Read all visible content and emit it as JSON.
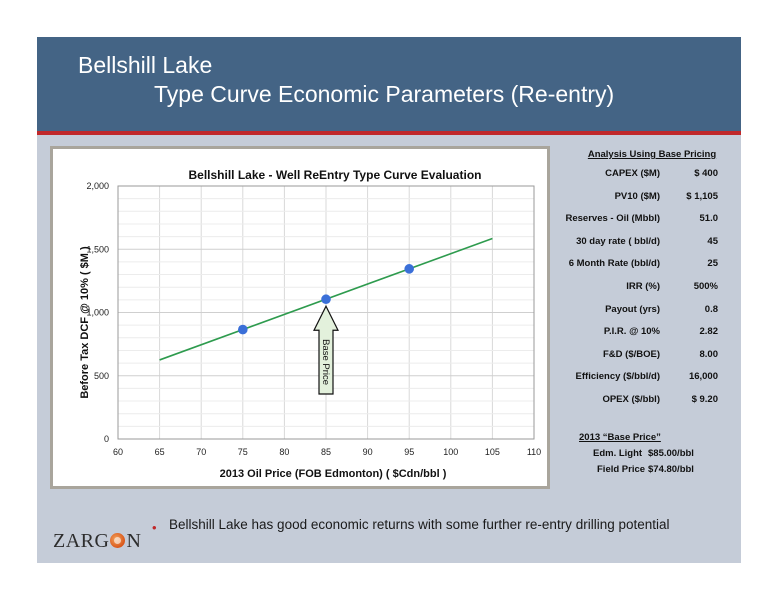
{
  "header": {
    "title_line1": "Bellshill Lake",
    "title_line2": "Type Curve Economic Parameters (Re-entry)"
  },
  "chart_data": {
    "type": "line",
    "title": "Bellshill Lake - Well ReEntry Type Curve Evaluation",
    "xlabel": "2013 Oil Price  (FOB Edmonton) ( $Cdn/bbl )",
    "ylabel": "Before Tax DCF @ 10% ( $M )",
    "xlim": [
      60,
      110
    ],
    "ylim": [
      0,
      2000
    ],
    "xticks": [
      60,
      65,
      70,
      75,
      80,
      85,
      90,
      95,
      100,
      105,
      110
    ],
    "yticks": [
      0,
      500,
      1000,
      1500,
      2000
    ],
    "ytick_labels": [
      "0",
      "500",
      "1,000",
      "1,500",
      "2,000"
    ],
    "grid": true,
    "series": [
      {
        "line": {
          "x": [
            65,
            105
          ],
          "y": [
            625,
            1585
          ]
        },
        "points": {
          "x": [
            75,
            85,
            95
          ],
          "y": [
            865,
            1105,
            1345
          ]
        }
      }
    ],
    "annotations": [
      {
        "text": "Base Price",
        "x": 85
      }
    ],
    "colors": {
      "line": "#2e9b4e",
      "points": "#3a6fd8",
      "arrow_fill": "#e3f1dc"
    }
  },
  "analysis": {
    "heading": "Analysis Using Base Pricing",
    "rows": [
      {
        "label": "CAPEX ($M)",
        "value": "$ 400"
      },
      {
        "label": "PV10 ($M)",
        "value": "$ 1,105"
      },
      {
        "label": "Reserves - Oil (Mbbl)",
        "value": "51.0"
      },
      {
        "label": "30 day rate ( bbl/d)",
        "value": "45"
      },
      {
        "label": "6 Month Rate (bbl/d)",
        "value": "25"
      },
      {
        "label": "IRR (%)",
        "value": "500%"
      },
      {
        "label": "Payout (yrs)",
        "value": "0.8"
      },
      {
        "label": "P.I.R. @ 10%",
        "value": "2.82"
      },
      {
        "label": "F&D ($/BOE)",
        "value": "8.00"
      },
      {
        "label": "Efficiency ($/bbl/d)",
        "value": "16,000"
      },
      {
        "label": "OPEX ($/bbl)",
        "value": "$ 9.20"
      }
    ]
  },
  "base_price": {
    "heading": "2013 “Base Price”",
    "rows": [
      {
        "label": "Edm. Light",
        "value": "$85.00/bbl"
      },
      {
        "label": "Field Price",
        "value": "$74.80/bbl"
      }
    ]
  },
  "bullet": "Bellshill Lake has good economic returns with some further re-entry drilling potential",
  "logo": {
    "text_left": "ZARG",
    "text_right": "N"
  },
  "colors": {
    "header": "#446485",
    "rule": "#c0282a",
    "background": "#c5ccd8"
  }
}
